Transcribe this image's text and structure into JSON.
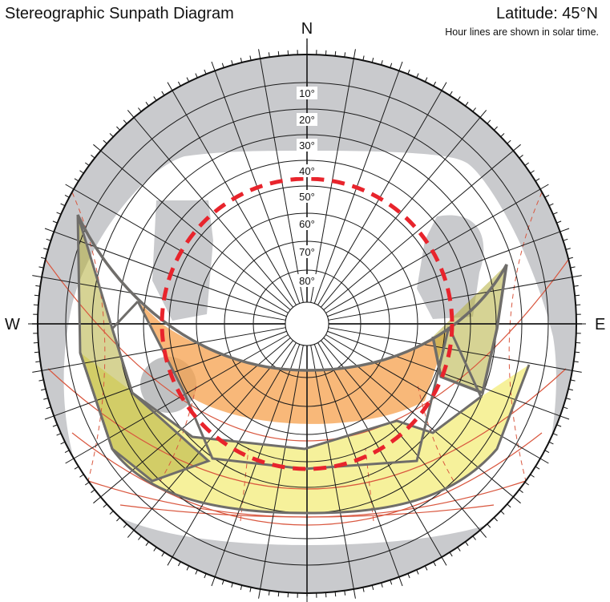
{
  "header": {
    "title": "Stereographic Sunpath Diagram",
    "latitude": "Latitude: 45°N",
    "note": "Hour lines are shown in solar time."
  },
  "compass": {
    "north": "N",
    "east": "E",
    "west": "W"
  },
  "altitude_rings": [
    "10°",
    "20°",
    "30°",
    "40°",
    "50°",
    "60°",
    "70°",
    "80°"
  ],
  "colors": {
    "sky_mask": "#c9cacd",
    "grid": "#1a1a1a",
    "outer_ring": "#111111",
    "dashed_circle": "#e8242c",
    "sun_paths": "#d9573f",
    "shade_yellow": "#f4ef8a",
    "shade_orange": "#f6a04c",
    "shade_olive": "#b5ae3c",
    "polygon_stroke": "#6f6d6a"
  }
}
